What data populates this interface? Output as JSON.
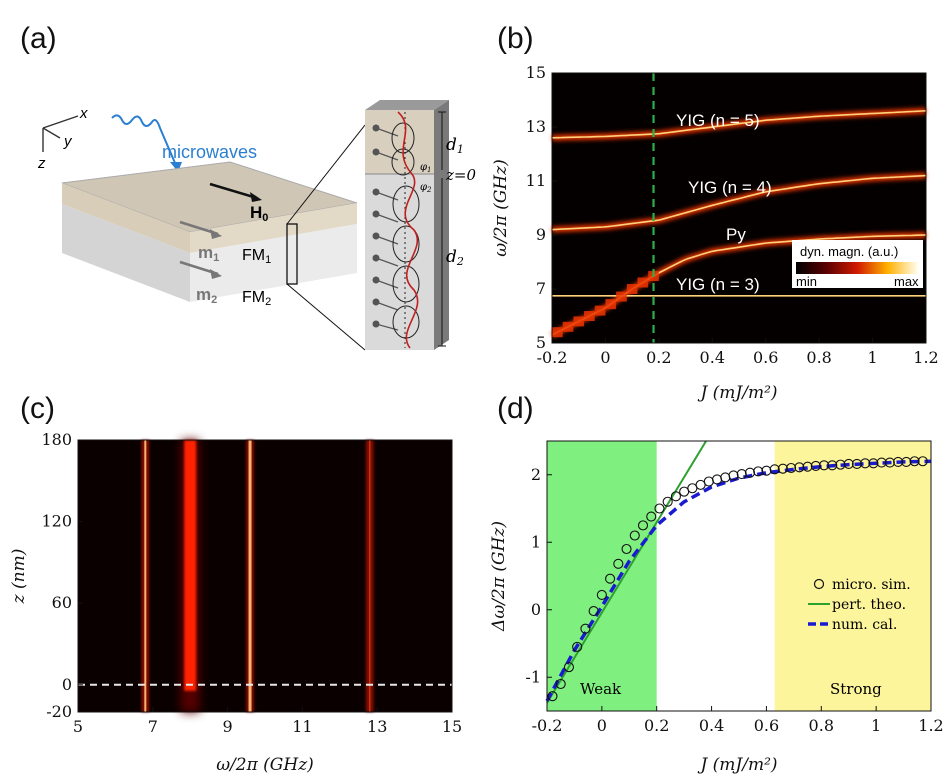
{
  "panels": {
    "a": "(a)",
    "b": "(b)",
    "c": "(c)",
    "d": "(d)"
  },
  "schematic": {
    "axes": {
      "x": "x",
      "y": "y",
      "z": "z"
    },
    "microwaves": "microwaves",
    "h0": "H",
    "h0_sub": "0",
    "m1": "m",
    "m1_sub": "1",
    "m2": "m",
    "m2_sub": "2",
    "fm1": "FM",
    "fm1_sub": "1",
    "fm2": "FM",
    "fm2_sub": "2",
    "d1": "d",
    "d1_sub": "1",
    "d2": "d",
    "d2_sub": "2",
    "phi1": "φ",
    "phi1_sub": "1",
    "phi2": "φ",
    "phi2_sub": "2",
    "z0": "z=0"
  },
  "colorbar": {
    "label": "dyn. magn. (a.u.)",
    "min": "min",
    "max": "max"
  },
  "regions": {
    "weak": "Weak",
    "strong": "Strong"
  },
  "chart_data": [
    {
      "panel": "b",
      "type": "heatmap",
      "xlabel": "J (mJ/m²)",
      "ylabel": "ω/2π (GHz)",
      "xlim": [
        -0.2,
        1.2
      ],
      "ylim": [
        5,
        15
      ],
      "xticks": [
        "-0.2",
        "0",
        "0.2",
        "0.4",
        "0.6",
        "0.8",
        "1",
        "1.2"
      ],
      "yticks": [
        "5",
        "7",
        "9",
        "11",
        "13",
        "15"
      ],
      "marker_line_x": 0.18,
      "annotations": [
        "YIG (n = 5)",
        "YIG (n = 4)",
        "Py",
        "YIG (n = 3)"
      ],
      "modes": [
        {
          "x": [
            -0.2,
            0.0,
            0.2,
            0.4,
            0.6,
            0.8,
            1.0,
            1.2
          ],
          "y": [
            12.6,
            12.65,
            12.75,
            13.0,
            13.25,
            13.4,
            13.5,
            13.6
          ]
        },
        {
          "x": [
            -0.2,
            0.0,
            0.2,
            0.4,
            0.6,
            0.8,
            1.0,
            1.2
          ],
          "y": [
            9.2,
            9.3,
            9.55,
            10.1,
            10.6,
            10.9,
            11.1,
            11.2
          ]
        },
        {
          "x": [
            -0.2,
            -0.1,
            0.0,
            0.1,
            0.2,
            0.3,
            0.4,
            0.6,
            0.8,
            1.0,
            1.2
          ],
          "y": [
            5.3,
            5.8,
            6.3,
            7.0,
            7.6,
            8.1,
            8.4,
            8.7,
            8.85,
            8.95,
            9.0
          ]
        },
        {
          "x": [
            -0.2,
            0.0,
            0.2,
            0.4,
            0.6,
            0.8,
            1.0,
            1.2
          ],
          "y": [
            6.75,
            6.75,
            6.75,
            6.75,
            6.75,
            6.75,
            6.75,
            6.75
          ]
        }
      ]
    },
    {
      "panel": "c",
      "type": "heatmap",
      "xlabel": "ω/2π (GHz)",
      "ylabel": "z (nm)",
      "xlim": [
        5,
        15
      ],
      "ylim": [
        -20,
        180
      ],
      "xticks": [
        "5",
        "7",
        "9",
        "11",
        "13",
        "15"
      ],
      "yticks": [
        "-20",
        "0",
        "60",
        "120",
        "180"
      ],
      "interface_z": 0,
      "mode_frequencies": [
        6.8,
        8.0,
        9.6,
        12.8
      ]
    },
    {
      "panel": "d",
      "type": "scatter",
      "xlabel": "J (mJ/m²)",
      "ylabel": "Δω/2π (GHz)",
      "xlim": [
        -0.2,
        1.2
      ],
      "ylim": [
        -1.5,
        2.5
      ],
      "xticks": [
        "-0.2",
        "0",
        "0.2",
        "0.4",
        "0.6",
        "0.8",
        "1",
        "1.2"
      ],
      "yticks": [
        "-1",
        "0",
        "1",
        "2"
      ],
      "weak_region": [
        -0.2,
        0.2
      ],
      "strong_region": [
        0.63,
        1.2
      ],
      "series": [
        {
          "name": "micro. sim.",
          "x": [
            -0.18,
            -0.15,
            -0.12,
            -0.09,
            -0.06,
            -0.03,
            0.0,
            0.03,
            0.06,
            0.09,
            0.12,
            0.15,
            0.18,
            0.21,
            0.24,
            0.27,
            0.3,
            0.33,
            0.36,
            0.39,
            0.42,
            0.45,
            0.48,
            0.51,
            0.54,
            0.57,
            0.6,
            0.63,
            0.66,
            0.69,
            0.72,
            0.75,
            0.78,
            0.81,
            0.84,
            0.87,
            0.9,
            0.93,
            0.96,
            0.99,
            1.02,
            1.05,
            1.08,
            1.11,
            1.14,
            1.17
          ],
          "y": [
            -1.28,
            -1.1,
            -0.85,
            -0.55,
            -0.28,
            -0.02,
            0.22,
            0.46,
            0.68,
            0.9,
            1.1,
            1.25,
            1.38,
            1.5,
            1.6,
            1.68,
            1.75,
            1.8,
            1.85,
            1.9,
            1.93,
            1.96,
            1.99,
            2.01,
            2.03,
            2.05,
            2.06,
            2.08,
            2.09,
            2.1,
            2.11,
            2.12,
            2.13,
            2.14,
            2.14,
            2.15,
            2.16,
            2.16,
            2.17,
            2.17,
            2.18,
            2.18,
            2.19,
            2.19,
            2.2,
            2.2
          ]
        },
        {
          "name": "pert. theo.",
          "x": [
            -0.2,
            0.38
          ],
          "y": [
            -1.38,
            2.55
          ]
        },
        {
          "name": "num. cal.",
          "x": [
            -0.2,
            -0.1,
            0.0,
            0.1,
            0.2,
            0.3,
            0.4,
            0.5,
            0.6,
            0.7,
            0.8,
            0.9,
            1.0,
            1.1,
            1.2
          ],
          "y": [
            -1.35,
            -0.6,
            0.05,
            0.72,
            1.25,
            1.6,
            1.82,
            1.95,
            2.03,
            2.08,
            2.12,
            2.15,
            2.17,
            2.19,
            2.2
          ]
        }
      ]
    }
  ]
}
